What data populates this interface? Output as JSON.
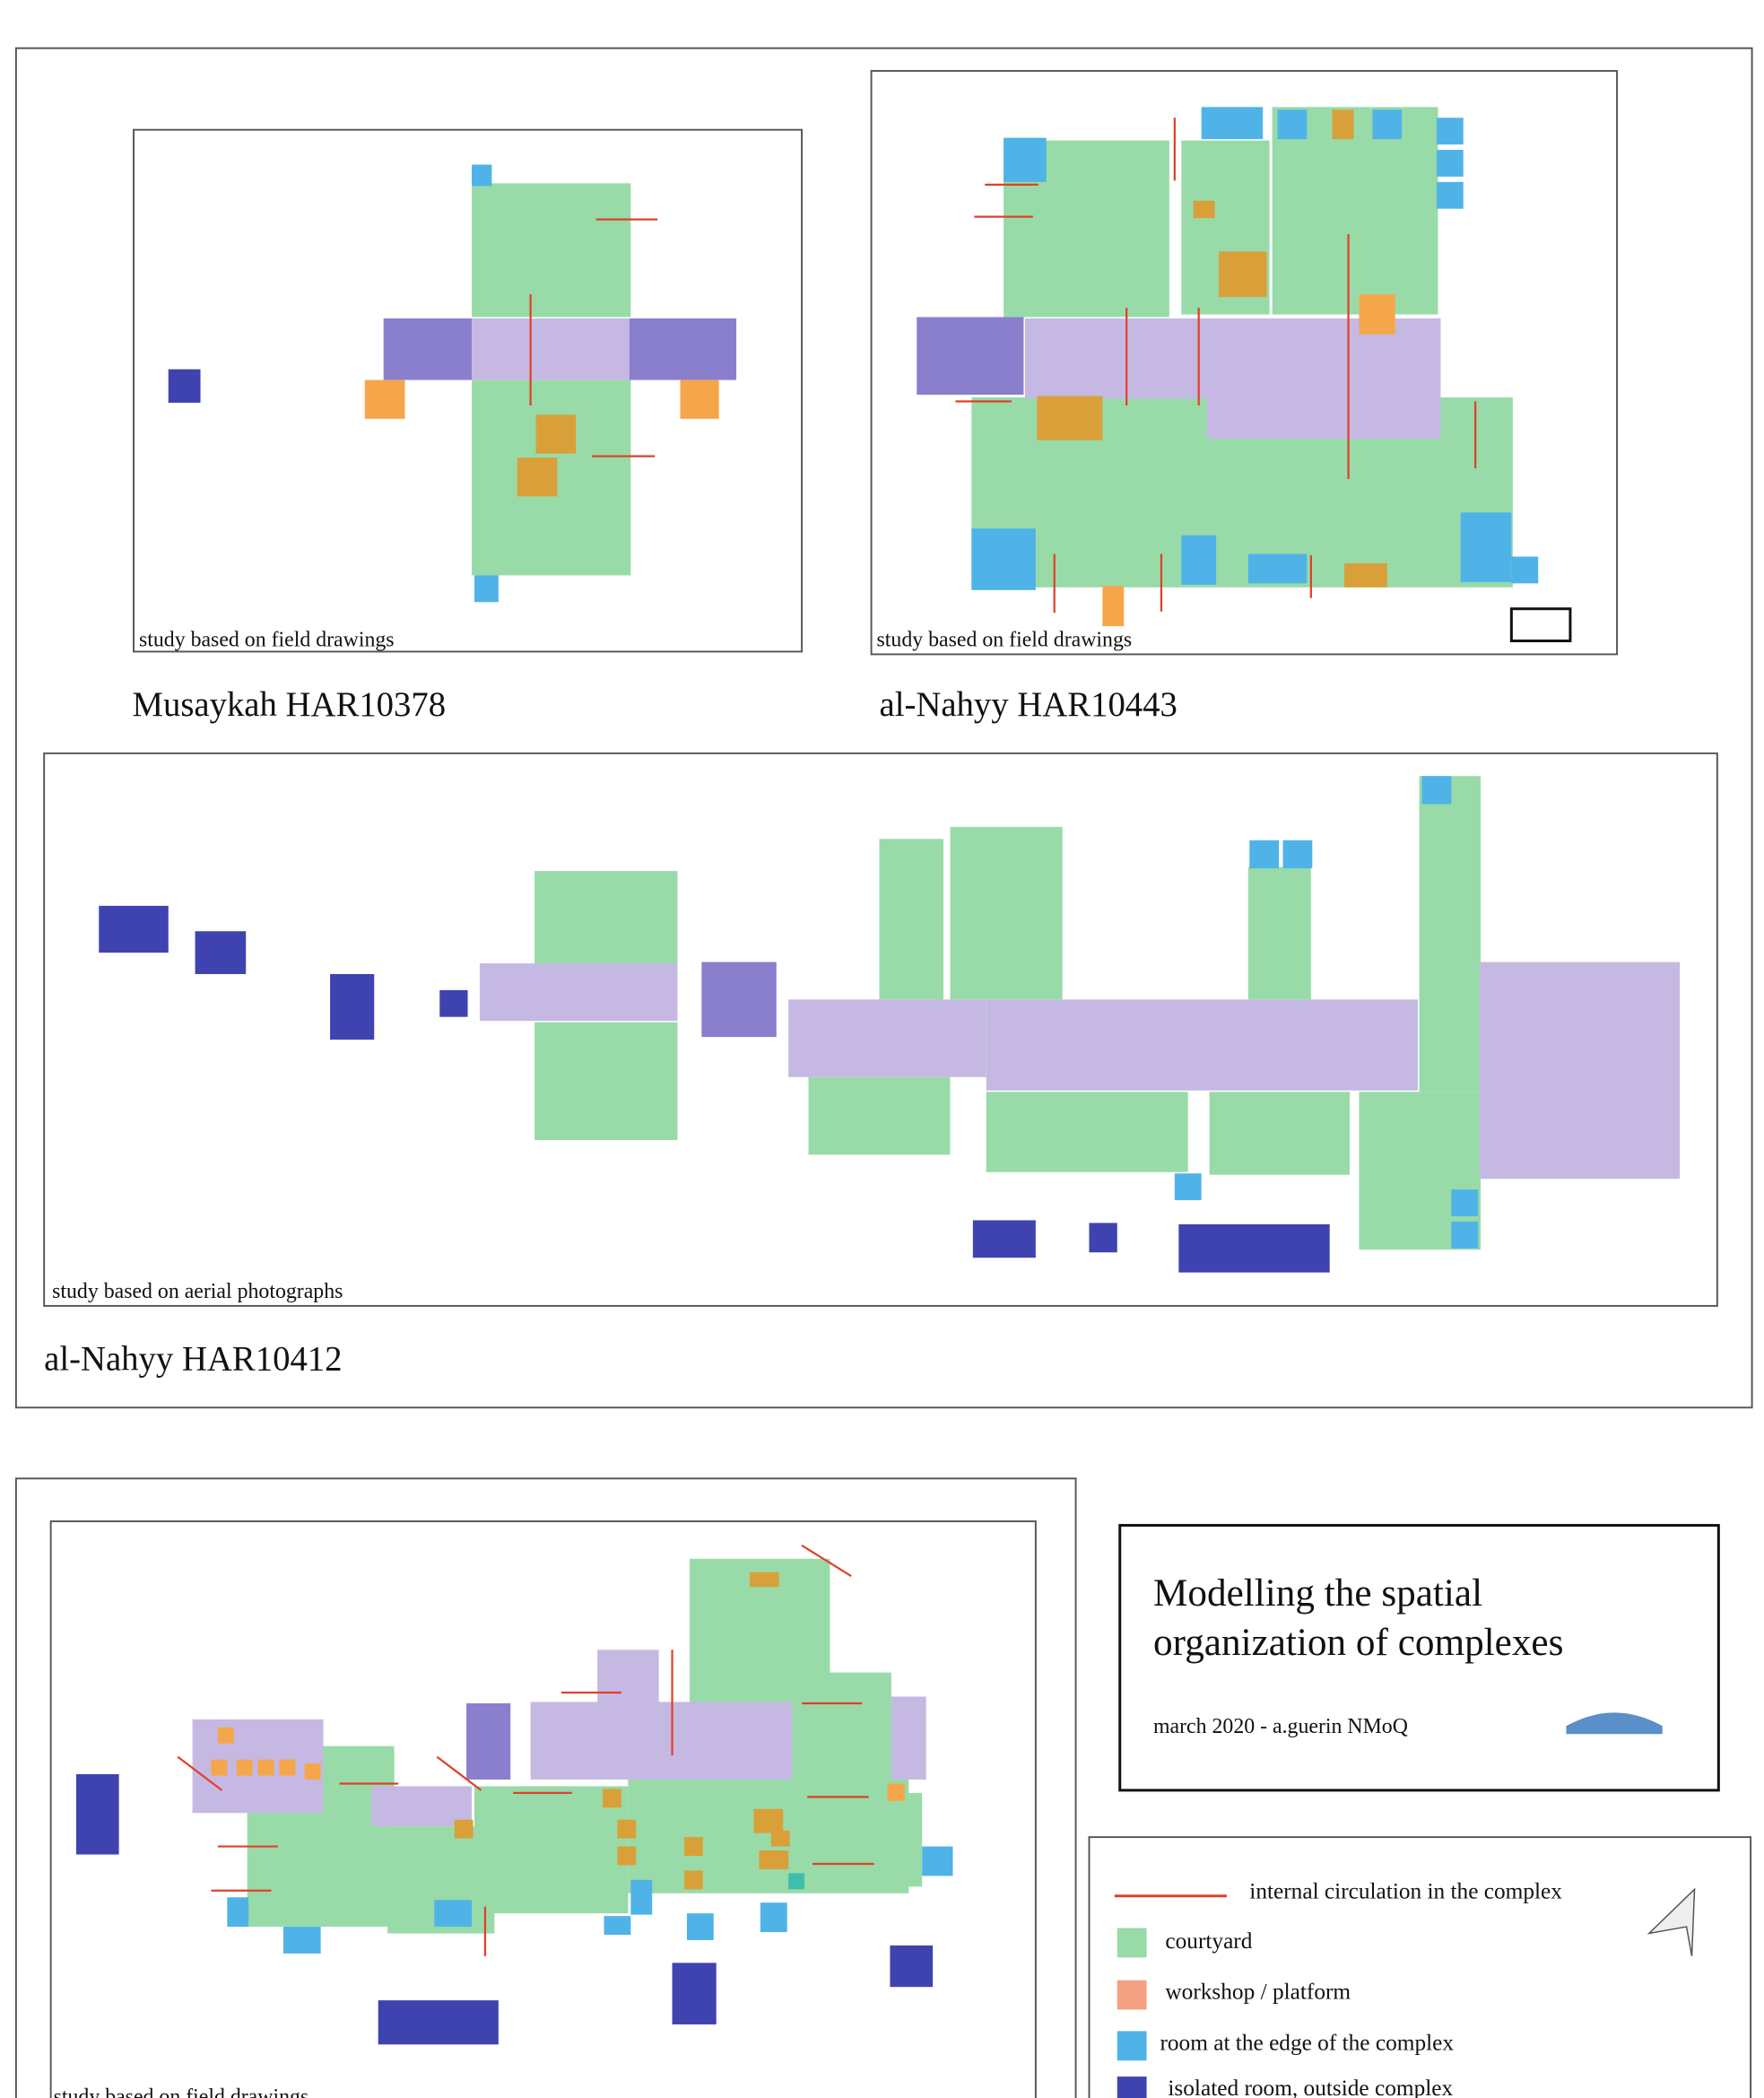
{
  "panels": [
    {
      "caption": "study based on field drawings",
      "name": "Musaykah HAR10378"
    },
    {
      "caption": "study based on field drawings",
      "name": "al-Nahyy HAR10443"
    },
    {
      "caption": "study based on aerial photographs",
      "name": "al-Nahyy HAR10412"
    },
    {
      "caption": "study based on field drawings"
    }
  ],
  "title_box": {
    "title": [
      "Modelling the spatial",
      "organization of complexes"
    ],
    "credit": "march 2020 - a.guerin NMoQ"
  },
  "legend": {
    "items": [
      "internal circulation in the complex",
      "courtyard",
      "workshop / platform",
      "room at the edge of the complex",
      "isolated room, outside complex"
    ]
  }
}
